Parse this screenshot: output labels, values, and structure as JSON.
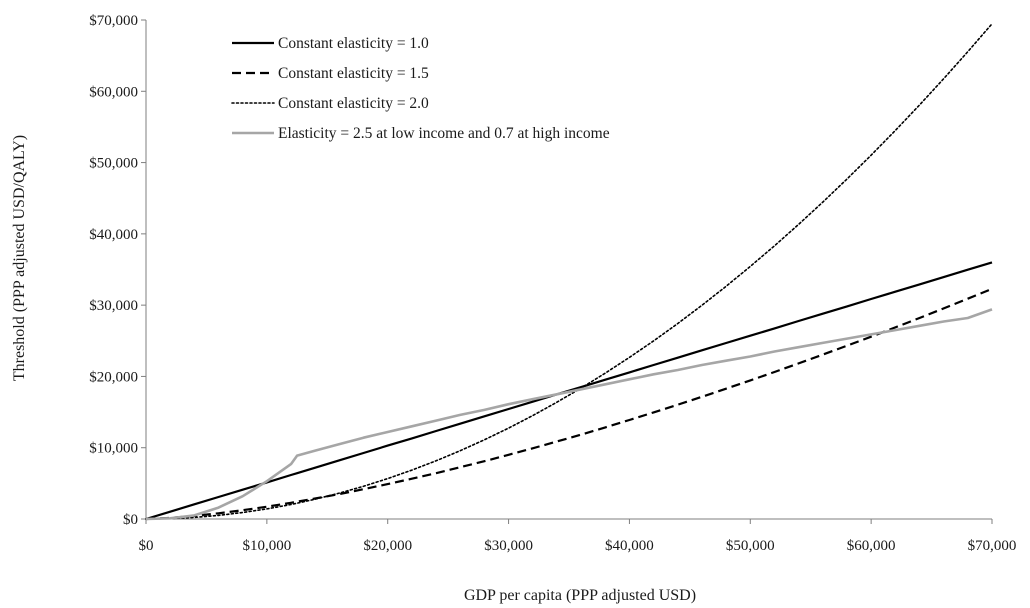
{
  "chart_data": {
    "type": "line",
    "title": "",
    "xlabel": "GDP per capita (PPP adjusted USD)",
    "ylabel": "Threshold (PPP adjusted USD/QALY)",
    "xlim": [
      0,
      70000
    ],
    "ylim": [
      0,
      70000
    ],
    "x_ticks": [
      0,
      10000,
      20000,
      30000,
      40000,
      50000,
      60000,
      70000
    ],
    "x_tick_labels": [
      "$0",
      "$10,000",
      "$20,000",
      "$30,000",
      "$40,000",
      "$50,000",
      "$60,000",
      "$70,000"
    ],
    "y_ticks": [
      0,
      10000,
      20000,
      30000,
      40000,
      50000,
      60000,
      70000
    ],
    "y_tick_labels": [
      "$0",
      "$10,000",
      "$20,000",
      "$30,000",
      "$40,000",
      "$50,000",
      "$60,000",
      "$70,000"
    ],
    "grid": false,
    "legend_position": "top-left",
    "x": [
      0,
      2000,
      4000,
      6000,
      8000,
      10000,
      12000,
      12500,
      14000,
      16000,
      18000,
      20000,
      22000,
      24000,
      26000,
      28000,
      30000,
      32000,
      34000,
      36000,
      38000,
      40000,
      42000,
      44000,
      46000,
      48000,
      50000,
      52000,
      54000,
      56000,
      58000,
      60000,
      62000,
      64000,
      66000,
      68000,
      70000
    ],
    "series": [
      {
        "name": "Constant elasticity = 1.0",
        "style": "solid",
        "color": "#000000",
        "values": [
          0,
          1030,
          2060,
          3090,
          4110,
          5140,
          6170,
          6430,
          7200,
          8230,
          9260,
          10290,
          11310,
          12340,
          13370,
          14400,
          15430,
          16460,
          17490,
          18510,
          19540,
          20570,
          21600,
          22630,
          23660,
          24690,
          25710,
          26740,
          27770,
          28800,
          29830,
          30860,
          31890,
          32910,
          33940,
          34970,
          36000
        ]
      },
      {
        "name": "Constant elasticity = 1.5",
        "style": "dashed",
        "color": "#000000",
        "values": [
          0,
          160,
          440,
          800,
          1240,
          1730,
          2270,
          2420,
          2870,
          3500,
          4180,
          4900,
          5650,
          6430,
          7260,
          8110,
          9000,
          9920,
          10870,
          11840,
          12850,
          13890,
          14950,
          16030,
          17140,
          18280,
          19440,
          20620,
          21830,
          23060,
          24310,
          25580,
          26880,
          28200,
          29540,
          30900,
          32280
        ]
      },
      {
        "name": "Constant elasticity = 2.0",
        "style": "dotted",
        "color": "#000000",
        "values": [
          0,
          60,
          230,
          510,
          910,
          1420,
          2040,
          2220,
          2780,
          3630,
          4590,
          5670,
          6860,
          8160,
          9580,
          11110,
          12750,
          14510,
          16380,
          18360,
          20460,
          22670,
          24990,
          27430,
          29980,
          32650,
          35430,
          38320,
          41330,
          44450,
          47690,
          51030,
          54500,
          58070,
          61760,
          65560,
          69470
        ]
      },
      {
        "name": "Elasticity = 2.5 at low income and 0.7 at high income",
        "style": "solid",
        "color": "#a6a6a6",
        "values": [
          0,
          100,
          500,
          1600,
          3200,
          5300,
          7700,
          8900,
          9600,
          10500,
          11400,
          12200,
          13000,
          13800,
          14600,
          15300,
          16100,
          16800,
          17500,
          18200,
          18900,
          19600,
          20300,
          20900,
          21600,
          22200,
          22800,
          23500,
          24100,
          24700,
          25300,
          25900,
          26500,
          27100,
          27700,
          28200,
          29400
        ]
      }
    ]
  }
}
